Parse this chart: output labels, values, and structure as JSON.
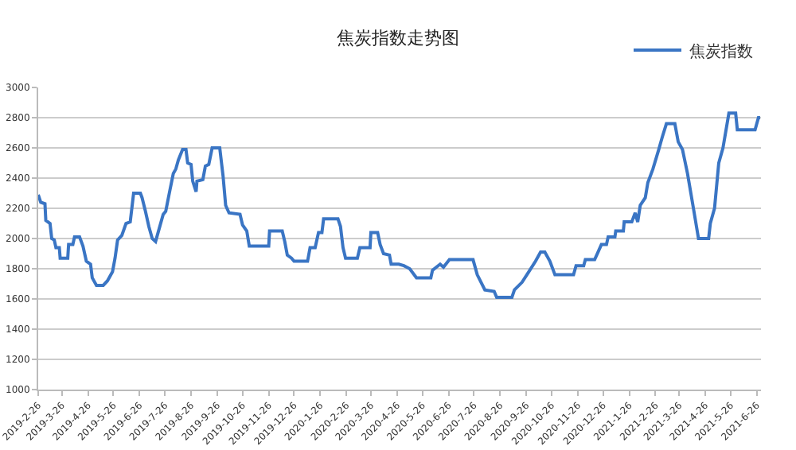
{
  "chart_data": {
    "type": "line",
    "title": "焦炭指数走势图",
    "legend": "top right",
    "grid": "y",
    "marker": "none",
    "line_style": "solid",
    "xlim": [
      "2019-02-26",
      "2021-07-01"
    ],
    "ylim": [
      1000,
      3000
    ],
    "yticks": [
      1000,
      1200,
      1400,
      1600,
      1800,
      2000,
      2200,
      2400,
      2600,
      2800,
      3000
    ],
    "xticks": [
      {
        "value": "2019-02-26",
        "label": "2019-2-26"
      },
      {
        "value": "2019-03-26",
        "label": "2019-3-26"
      },
      {
        "value": "2019-04-26",
        "label": "2019-4-26"
      },
      {
        "value": "2019-05-26",
        "label": "2019-5-26"
      },
      {
        "value": "2019-06-26",
        "label": "2019-6-26"
      },
      {
        "value": "2019-07-26",
        "label": "2019-7-26"
      },
      {
        "value": "2019-08-26",
        "label": "2019-8-26"
      },
      {
        "value": "2019-09-26",
        "label": "2019-9-26"
      },
      {
        "value": "2019-10-26",
        "label": "2019-10-26"
      },
      {
        "value": "2019-11-26",
        "label": "2019-11-26"
      },
      {
        "value": "2019-12-26",
        "label": "2019-12-26"
      },
      {
        "value": "2020-01-26",
        "label": "2020-1-26"
      },
      {
        "value": "2020-02-26",
        "label": "2020-2-26"
      },
      {
        "value": "2020-03-26",
        "label": "2020-3-26"
      },
      {
        "value": "2020-04-26",
        "label": "2020-4-26"
      },
      {
        "value": "2020-05-26",
        "label": "2020-5-26"
      },
      {
        "value": "2020-06-26",
        "label": "2020-6-26"
      },
      {
        "value": "2020-07-26",
        "label": "2020-7-26"
      },
      {
        "value": "2020-08-26",
        "label": "2020-8-26"
      },
      {
        "value": "2020-09-26",
        "label": "2020-9-26"
      },
      {
        "value": "2020-10-26",
        "label": "2020-10-26"
      },
      {
        "value": "2020-11-26",
        "label": "2020-11-26"
      },
      {
        "value": "2020-12-26",
        "label": "2020-12-26"
      },
      {
        "value": "2021-01-26",
        "label": "2021-1-26"
      },
      {
        "value": "2021-02-26",
        "label": "2021-2-26"
      },
      {
        "value": "2021-03-26",
        "label": "2021-3-26"
      },
      {
        "value": "2021-04-26",
        "label": "2021-4-26"
      },
      {
        "value": "2021-05-26",
        "label": "2021-5-26"
      },
      {
        "value": "2021-06-26",
        "label": "2021-6-26"
      }
    ],
    "series": [
      {
        "name": "焦炭指数",
        "color": "#3a75c4",
        "x": [
          "2019-02-26",
          "2019-03-01",
          "2019-03-06",
          "2019-03-07",
          "2019-03-12",
          "2019-03-14",
          "2019-03-17",
          "2019-03-19",
          "2019-03-23",
          "2019-03-24",
          "2019-04-02",
          "2019-04-03",
          "2019-04-08",
          "2019-04-10",
          "2019-04-16",
          "2019-04-20",
          "2019-04-24",
          "2019-04-29",
          "2019-05-01",
          "2019-05-06",
          "2019-05-14",
          "2019-05-19",
          "2019-05-25",
          "2019-05-28",
          "2019-05-31",
          "2019-06-05",
          "2019-06-10",
          "2019-06-15",
          "2019-06-19",
          "2019-06-27",
          "2019-06-29",
          "2019-07-03",
          "2019-07-07",
          "2019-07-11",
          "2019-07-15",
          "2019-07-19",
          "2019-07-24",
          "2019-07-27",
          "2019-08-01",
          "2019-08-05",
          "2019-08-08",
          "2019-08-11",
          "2019-08-16",
          "2019-08-20",
          "2019-08-22",
          "2019-08-26",
          "2019-08-28",
          "2019-09-01",
          "2019-09-02",
          "2019-09-09",
          "2019-09-12",
          "2019-09-16",
          "2019-09-20",
          "2019-09-29",
          "2019-10-03",
          "2019-10-06",
          "2019-10-10",
          "2019-10-23",
          "2019-10-26",
          "2019-10-31",
          "2019-11-03",
          "2019-11-26",
          "2019-11-27",
          "2019-12-12",
          "2019-12-15",
          "2019-12-18",
          "2019-12-23",
          "2019-12-26",
          "2020-01-11",
          "2020-01-14",
          "2020-01-20",
          "2020-01-24",
          "2020-01-28",
          "2020-01-30",
          "2020-02-16",
          "2020-02-19",
          "2020-02-22",
          "2020-02-25",
          "2020-03-10",
          "2020-03-13",
          "2020-03-25",
          "2020-03-26",
          "2020-04-03",
          "2020-04-06",
          "2020-04-10",
          "2020-04-17",
          "2020-04-19",
          "2020-04-28",
          "2020-05-04",
          "2020-05-11",
          "2020-05-19",
          "2020-06-05",
          "2020-06-07",
          "2020-06-16",
          "2020-06-20",
          "2020-06-27",
          "2020-07-25",
          "2020-07-30",
          "2020-08-08",
          "2020-08-19",
          "2020-08-22",
          "2020-09-09",
          "2020-09-12",
          "2020-09-21",
          "2020-09-29",
          "2020-10-07",
          "2020-10-13",
          "2020-10-18",
          "2020-10-24",
          "2020-10-30",
          "2020-11-21",
          "2020-11-24",
          "2020-12-03",
          "2020-12-05",
          "2020-12-16",
          "2020-12-20",
          "2020-12-24",
          "2020-12-30",
          "2021-01-01",
          "2021-01-09",
          "2021-01-10",
          "2021-01-19",
          "2021-01-20",
          "2021-01-29",
          "2021-02-02",
          "2021-02-05",
          "2021-02-08",
          "2021-02-14",
          "2021-02-17",
          "2021-02-23",
          "2021-03-02",
          "2021-03-06",
          "2021-03-11",
          "2021-03-21",
          "2021-03-25",
          "2021-03-30",
          "2021-04-05",
          "2021-04-12",
          "2021-04-18",
          "2021-04-30",
          "2021-05-02",
          "2021-05-07",
          "2021-05-12",
          "2021-05-17",
          "2021-05-24",
          "2021-06-01",
          "2021-06-03",
          "2021-06-24",
          "2021-06-28",
          "2021-06-30"
        ],
        "values": [
          2290,
          2240,
          2230,
          2120,
          2100,
          2000,
          1990,
          1940,
          1940,
          1870,
          1870,
          1960,
          1960,
          2010,
          2010,
          1950,
          1850,
          1830,
          1740,
          1690,
          1690,
          1720,
          1780,
          1870,
          1990,
          2020,
          2100,
          2110,
          2300,
          2300,
          2270,
          2180,
          2080,
          2000,
          1980,
          2060,
          2160,
          2180,
          2320,
          2430,
          2460,
          2520,
          2590,
          2590,
          2500,
          2490,
          2380,
          2310,
          2380,
          2390,
          2480,
          2490,
          2600,
          2600,
          2410,
          2220,
          2170,
          2160,
          2090,
          2050,
          1950,
          1950,
          2050,
          2050,
          1980,
          1890,
          1870,
          1850,
          1850,
          1940,
          1940,
          2040,
          2040,
          2130,
          2130,
          2080,
          1940,
          1870,
          1870,
          1940,
          1940,
          2040,
          2040,
          1960,
          1900,
          1890,
          1830,
          1830,
          1820,
          1800,
          1740,
          1740,
          1790,
          1830,
          1810,
          1860,
          1860,
          1760,
          1660,
          1650,
          1610,
          1610,
          1660,
          1710,
          1780,
          1850,
          1910,
          1910,
          1850,
          1760,
          1760,
          1820,
          1820,
          1860,
          1860,
          1910,
          1960,
          1960,
          2010,
          2010,
          2050,
          2050,
          2110,
          2110,
          2170,
          2110,
          2220,
          2270,
          2370,
          2460,
          2590,
          2670,
          2760,
          2760,
          2640,
          2590,
          2430,
          2200,
          2000,
          2000,
          2100,
          2200,
          2500,
          2600,
          2830,
          2830,
          2720,
          2720,
          2800,
          2800
        ]
      }
    ]
  }
}
